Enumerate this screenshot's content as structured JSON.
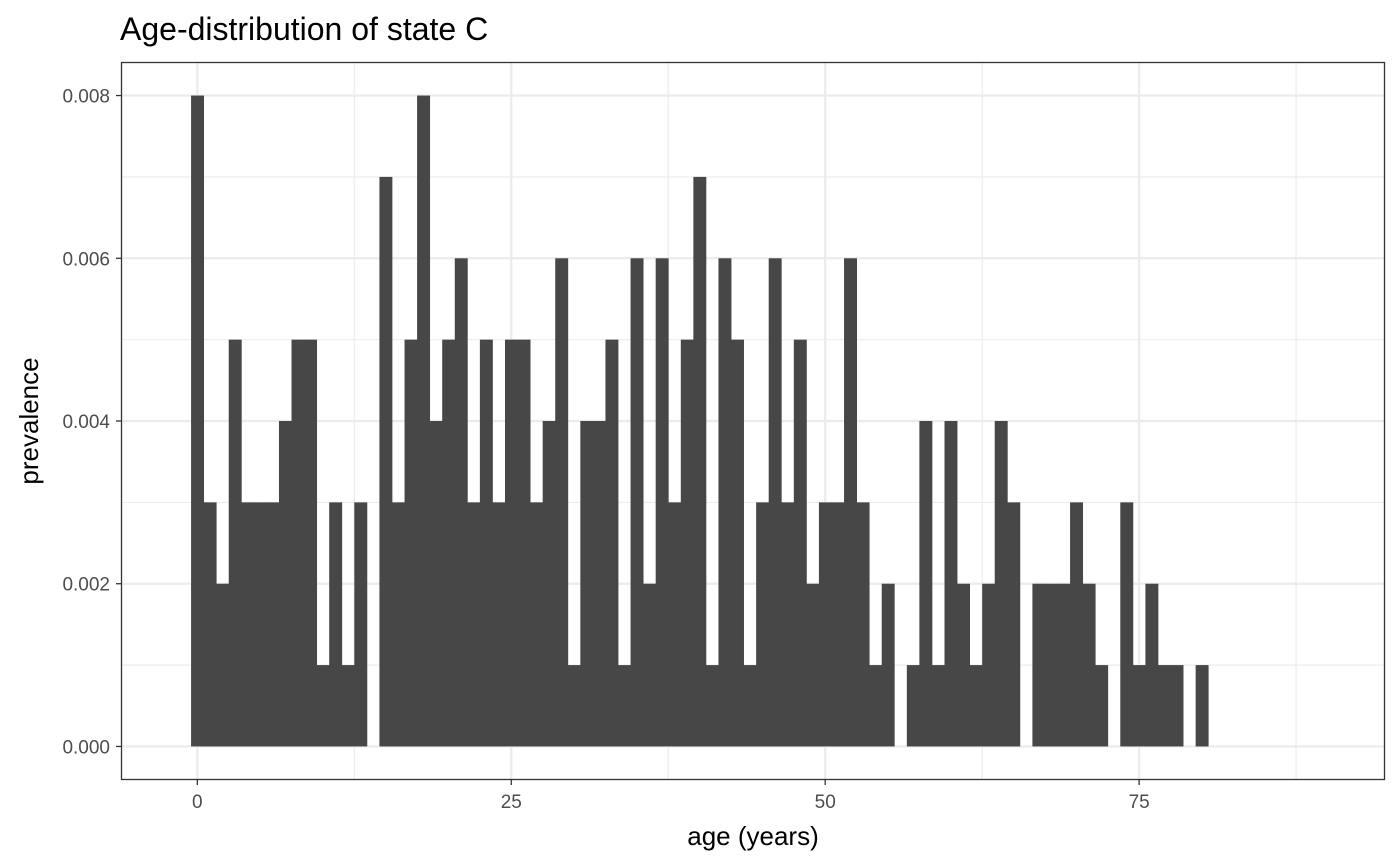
{
  "chart_data": {
    "type": "bar",
    "title": "Age-distribution of state C",
    "xlabel": "age (years)",
    "ylabel": "prevalence",
    "xlim": [
      -6,
      94.5
    ],
    "ylim": [
      -0.0004,
      0.0084
    ],
    "x_ticks": [
      {
        "value": 0,
        "label": "0"
      },
      {
        "value": 25,
        "label": "25"
      },
      {
        "value": 50,
        "label": "50"
      },
      {
        "value": 75,
        "label": "75"
      }
    ],
    "y_ticks": [
      {
        "value": 0.0,
        "label": "0.000"
      },
      {
        "value": 0.002,
        "label": "0.002"
      },
      {
        "value": 0.004,
        "label": "0.004"
      },
      {
        "value": 0.006,
        "label": "0.006"
      },
      {
        "value": 0.008,
        "label": "0.008"
      }
    ],
    "x_minor": [
      12.5,
      37.5,
      62.5,
      87.5
    ],
    "y_minor": [
      0.001,
      0.003,
      0.005,
      0.007
    ],
    "bar_color": "#474747",
    "grid": true,
    "categories": [
      0,
      1,
      2,
      3,
      4,
      5,
      6,
      7,
      8,
      9,
      10,
      11,
      12,
      13,
      14,
      15,
      16,
      17,
      18,
      19,
      20,
      21,
      22,
      23,
      24,
      25,
      26,
      27,
      28,
      29,
      30,
      31,
      32,
      33,
      34,
      35,
      36,
      37,
      38,
      39,
      40,
      41,
      42,
      43,
      44,
      45,
      46,
      47,
      48,
      49,
      50,
      51,
      52,
      53,
      54,
      55,
      56,
      57,
      58,
      59,
      60,
      61,
      62,
      63,
      64,
      65,
      66,
      67,
      68,
      69,
      70,
      71,
      72,
      73,
      74,
      75,
      76,
      77,
      78,
      79,
      80
    ],
    "values": [
      0.008,
      0.003,
      0.002,
      0.005,
      0.003,
      0.003,
      0.003,
      0.004,
      0.005,
      0.005,
      0.001,
      0.003,
      0.001,
      0.003,
      0.0,
      0.007,
      0.003,
      0.005,
      0.008,
      0.004,
      0.005,
      0.006,
      0.003,
      0.005,
      0.003,
      0.005,
      0.005,
      0.003,
      0.004,
      0.006,
      0.001,
      0.004,
      0.004,
      0.005,
      0.001,
      0.006,
      0.002,
      0.006,
      0.003,
      0.005,
      0.007,
      0.001,
      0.006,
      0.005,
      0.001,
      0.003,
      0.006,
      0.003,
      0.005,
      0.002,
      0.003,
      0.003,
      0.006,
      0.003,
      0.001,
      0.002,
      0.0,
      0.001,
      0.004,
      0.001,
      0.004,
      0.002,
      0.001,
      0.002,
      0.004,
      0.003,
      0.0,
      0.002,
      0.002,
      0.002,
      0.003,
      0.002,
      0.001,
      0.0,
      0.003,
      0.001,
      0.002,
      0.001,
      0.001,
      0.0,
      0.001
    ]
  }
}
